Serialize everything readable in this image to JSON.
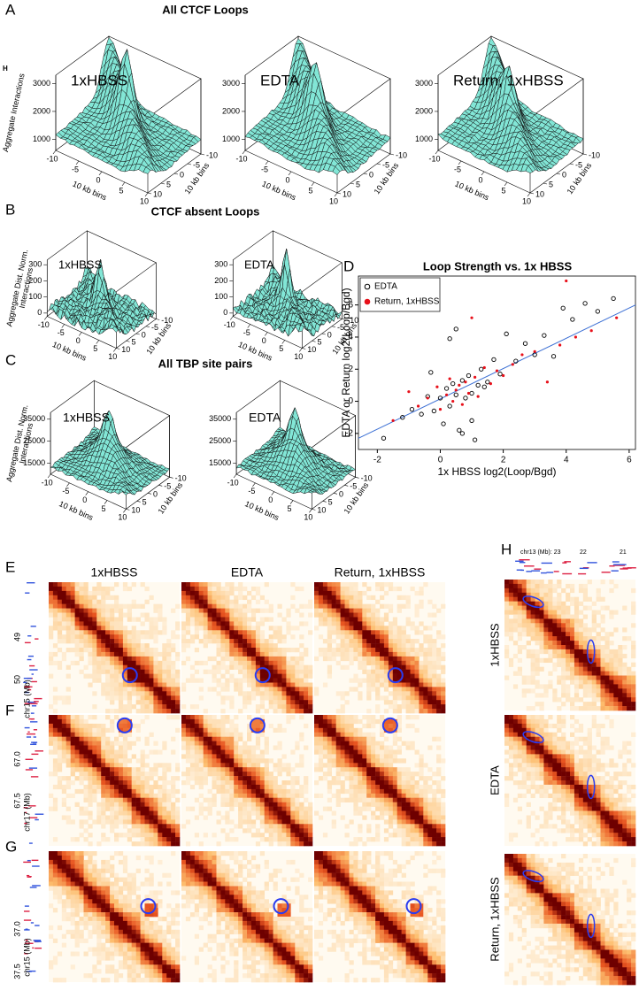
{
  "figure_marker": "H",
  "chart_data": [
    {
      "type": "surface",
      "label": "A",
      "title": "All CTCF Loops",
      "panels": [
        "1xHBSS",
        "EDTA",
        "Return, 1xHBSS"
      ],
      "zlabel": [
        "Aggregate Interactions"
      ],
      "zlim": [
        600,
        3300
      ],
      "zticks": [
        1000,
        2000,
        3000
      ],
      "xlabel": "10 kb bins",
      "ylabel": "10 kb bins",
      "xlim": [
        -10,
        10
      ],
      "xticks": [
        -10,
        -5,
        0,
        5,
        10
      ],
      "ylim": [
        -10,
        10
      ],
      "yticks": [
        -10,
        -5,
        0,
        5,
        10
      ],
      "color": "#82e6d6"
    },
    {
      "type": "surface",
      "label": "B",
      "title": "CTCF absent Loops",
      "panels": [
        "1xHBSS",
        "EDTA"
      ],
      "zlabel": [
        "Aggregate Dist. Norm.",
        "Interactions"
      ],
      "zlim": [
        -20,
        330
      ],
      "zticks": [
        0,
        100,
        200,
        300
      ],
      "xlabel": "10 kb bins",
      "ylabel": "10 kb bins",
      "xlim": [
        -10,
        10
      ],
      "xticks": [
        -10,
        -5,
        0,
        5,
        10
      ],
      "ylim": [
        -10,
        10
      ],
      "yticks": [
        -10,
        -5,
        0,
        5,
        10
      ],
      "color": "#82e6d6"
    },
    {
      "type": "surface",
      "label": "C",
      "title": "All TBP site pairs",
      "panels": [
        "1xHBSS",
        "EDTA"
      ],
      "zlabel": [
        "Aggregate Dist. Norm.",
        "Interactions"
      ],
      "zlim": [
        10000,
        38000
      ],
      "zticks": [
        15000,
        25000,
        35000
      ],
      "xlabel": "10 kb bins",
      "ylabel": "10 kb bins",
      "xlim": [
        -10,
        10
      ],
      "xticks": [
        -10,
        -5,
        0,
        5,
        10
      ],
      "ylim": [
        -10,
        10
      ],
      "yticks": [
        -10,
        -5,
        0,
        5,
        10
      ],
      "color": "#82e6d6"
    },
    {
      "type": "scatter",
      "label": "D",
      "title": "Loop Strength vs. 1x HBSS",
      "xlabel": "1x HBSS log2(Loop/Bgd)",
      "ylabel": "EDTA or Return log2(Loop/Bgd)",
      "xlim": [
        -2.6,
        6.2
      ],
      "xticks": [
        -2,
        0,
        2,
        4,
        6
      ],
      "ylim": [
        -3,
        7.8
      ],
      "yticks": [
        -2,
        0,
        2,
        4,
        6
      ],
      "legend": "top-left",
      "series": [
        {
          "name": "EDTA",
          "color": "#000000",
          "marker": "open",
          "x": [
            -1.8,
            -1.2,
            -0.9,
            -0.6,
            -0.4,
            -0.2,
            0,
            0.1,
            0.2,
            0.3,
            0.4,
            0.5,
            0.6,
            0.7,
            0.8,
            0.9,
            1,
            1.1,
            1.2,
            1.3,
            1.5,
            1.7,
            1.9,
            2.1,
            2.4,
            2.7,
            3,
            3.3,
            3.6,
            3.9,
            4.2,
            4.6,
            5,
            5.5,
            0.3,
            0.5,
            0.7,
            1,
            1.4,
            -0.3
          ],
          "values": [
            -2.3,
            -1,
            -0.5,
            -0.8,
            0.3,
            -0.6,
            0.2,
            -1.4,
            0.8,
            -0.3,
            1.1,
            0.4,
            -1.8,
            1.3,
            0.2,
            1.6,
            0.5,
            -2.4,
            1.0,
            2.0,
            1.2,
            2.6,
            1.7,
            4.2,
            2.5,
            3.6,
            2.9,
            4.1,
            2.8,
            5.8,
            5.1,
            6.1,
            5.6,
            6.4,
            3.9,
            4.5,
            -2.0,
            -1.2,
            0.9,
            1.8
          ]
        },
        {
          "name": "Return, 1xHBSS",
          "color": "#e8101a",
          "marker": "filled",
          "x": [
            -1.5,
            -1,
            -0.7,
            -0.4,
            -0.1,
            0,
            0.2,
            0.3,
            0.4,
            0.5,
            0.6,
            0.7,
            0.8,
            0.9,
            1,
            1.1,
            1.2,
            1.4,
            1.6,
            1.8,
            2,
            2.3,
            2.6,
            3,
            3.4,
            3.8,
            4,
            4.3,
            4.8,
            5.6
          ],
          "values": [
            -1.2,
            0.6,
            -0.3,
            0.2,
            0.9,
            -0.5,
            0.4,
            1.4,
            0,
            0.7,
            1,
            -0.2,
            1.2,
            0.5,
            5.2,
            1.5,
            0.3,
            2.1,
            1.1,
            1.9,
            1.6,
            2.3,
            2.9,
            3.1,
            1.2,
            3.5,
            7.5,
            4.0,
            4.4,
            5.2
          ]
        }
      ],
      "fit": {
        "color": "#3b6fd4",
        "x": [
          -2.6,
          6.2
        ],
        "values": [
          -2.3,
          6.0
        ]
      }
    }
  ],
  "hic": {
    "columns": [
      "1xHBSS",
      "EDTA",
      "Return, 1xHBSS"
    ],
    "rows": [
      {
        "label": "E",
        "axis_label": "chr15 (Mb)",
        "ticks": [
          "49",
          "50"
        ]
      },
      {
        "label": "F",
        "axis_label": "chr17 (Mb)",
        "ticks": [
          "67.0",
          "67.5"
        ]
      },
      {
        "label": "G",
        "axis_label": "chr15 (Mb)",
        "ticks": [
          "37.0",
          "37.5"
        ]
      }
    ],
    "side": {
      "label": "H",
      "axis_label": "chr13 (Mb): 23",
      "ticks": [
        "22",
        "21"
      ],
      "rows": [
        "1xHBSS",
        "EDTA",
        "Return, 1xHBSS"
      ]
    }
  }
}
